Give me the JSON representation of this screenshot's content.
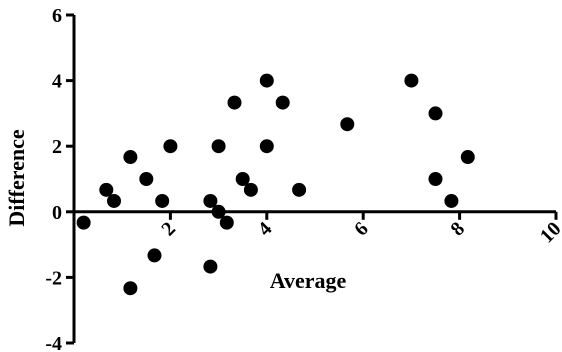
{
  "chart_data": {
    "type": "scatter",
    "title": "",
    "xlabel": "Average",
    "ylabel": "Difference",
    "xlim": [
      0,
      10
    ],
    "ylim": [
      -4,
      6
    ],
    "x_ticks": [
      2,
      4,
      6,
      8,
      10
    ],
    "y_ticks": [
      -4,
      -2,
      0,
      2,
      4,
      6
    ],
    "grid": false,
    "legend": "none",
    "marker_color": "#000000",
    "points": [
      {
        "x": 0.2,
        "y": -0.33
      },
      {
        "x": 0.67,
        "y": 0.67
      },
      {
        "x": 0.83,
        "y": 0.33
      },
      {
        "x": 1.17,
        "y": 1.67
      },
      {
        "x": 1.17,
        "y": -2.33
      },
      {
        "x": 1.5,
        "y": 1.0
      },
      {
        "x": 1.67,
        "y": -1.33
      },
      {
        "x": 1.83,
        "y": 0.33
      },
      {
        "x": 2.0,
        "y": 2.0
      },
      {
        "x": 2.83,
        "y": 0.33
      },
      {
        "x": 2.83,
        "y": -1.67
      },
      {
        "x": 3.0,
        "y": 2.0
      },
      {
        "x": 3.0,
        "y": 0.0
      },
      {
        "x": 3.17,
        "y": -0.33
      },
      {
        "x": 3.33,
        "y": 3.33
      },
      {
        "x": 3.5,
        "y": 1.0
      },
      {
        "x": 3.67,
        "y": 0.67
      },
      {
        "x": 4.0,
        "y": 4.0
      },
      {
        "x": 4.0,
        "y": 2.0
      },
      {
        "x": 4.33,
        "y": 3.33
      },
      {
        "x": 4.67,
        "y": 0.67
      },
      {
        "x": 5.67,
        "y": 2.67
      },
      {
        "x": 7.0,
        "y": 4.0
      },
      {
        "x": 7.5,
        "y": 3.0
      },
      {
        "x": 7.5,
        "y": 1.0
      },
      {
        "x": 7.83,
        "y": 0.33
      },
      {
        "x": 8.17,
        "y": 1.67
      }
    ]
  }
}
